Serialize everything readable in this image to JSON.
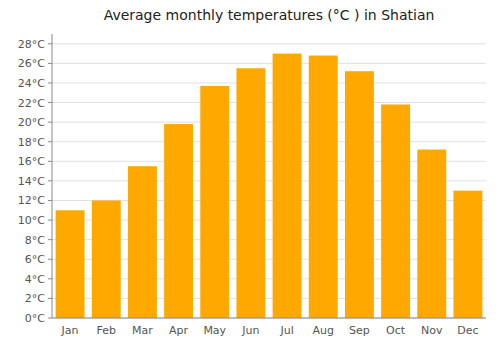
{
  "chart_data": {
    "type": "bar",
    "title": "Average monthly temperatures (°C ) in Shatian",
    "categories": [
      "Jan",
      "Feb",
      "Mar",
      "Apr",
      "May",
      "Jun",
      "Jul",
      "Aug",
      "Sep",
      "Oct",
      "Nov",
      "Dec"
    ],
    "values": [
      11,
      12,
      15.5,
      19.8,
      23.7,
      25.5,
      27.0,
      26.8,
      25.2,
      21.8,
      17.2,
      13.0
    ],
    "color": "#FFA800",
    "ylim": [
      0,
      29
    ],
    "yticks": [
      {
        "value": 0,
        "label": "0°C"
      },
      {
        "value": 2,
        "label": "2°C"
      },
      {
        "value": 4,
        "label": "4°C"
      },
      {
        "value": 6,
        "label": "6°C"
      },
      {
        "value": 8,
        "label": "8°C"
      },
      {
        "value": 10,
        "label": "10°C"
      },
      {
        "value": 12,
        "label": "12°C"
      },
      {
        "value": 14,
        "label": "14°C"
      },
      {
        "value": 16,
        "label": "16°C"
      },
      {
        "value": 18,
        "label": "18°C"
      },
      {
        "value": 20,
        "label": "20°C"
      },
      {
        "value": 22,
        "label": "22°C"
      },
      {
        "value": 24,
        "label": "24°C"
      },
      {
        "value": 26,
        "label": "26°C"
      },
      {
        "value": 28,
        "label": "28°C"
      }
    ],
    "grid": true
  }
}
